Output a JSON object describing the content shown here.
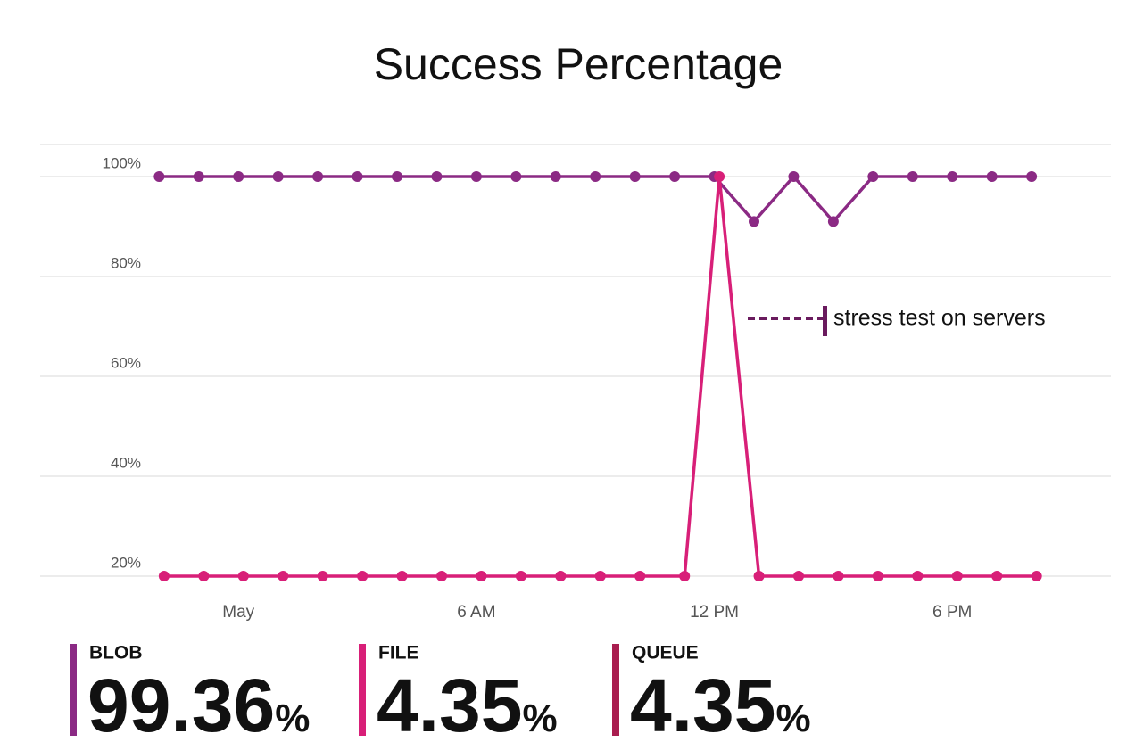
{
  "chart_data": {
    "type": "line",
    "title": "Success Percentage",
    "xlim": [
      -5,
      22
    ],
    "xticks": [
      {
        "value": 0,
        "label": "May"
      },
      {
        "value": 6,
        "label": "6 AM"
      },
      {
        "value": 12,
        "label": "12 PM"
      },
      {
        "value": 18,
        "label": "6 PM"
      }
    ],
    "ylim": [
      20,
      100
    ],
    "yticks": [
      {
        "value": 20,
        "label": "20%"
      },
      {
        "value": 40,
        "label": "40%"
      },
      {
        "value": 60,
        "label": "60%"
      },
      {
        "value": 80,
        "label": "80%"
      },
      {
        "value": 100,
        "label": "100%"
      }
    ],
    "grid": true,
    "series": [
      {
        "color": "#8b2a84",
        "x": [
          -2,
          -1,
          0,
          1,
          2,
          3,
          4,
          5,
          6,
          7,
          8,
          9,
          10,
          11,
          12,
          13,
          14,
          15,
          16,
          17,
          18,
          19,
          20
        ],
        "values": [
          100,
          100,
          100,
          100,
          100,
          100,
          100,
          100,
          100,
          100,
          100,
          100,
          100,
          100,
          100,
          91,
          100,
          91,
          100,
          100,
          100,
          100,
          100
        ]
      },
      {
        "color": "#d81f78",
        "x": [
          -1.875,
          -0.875,
          0.125,
          1.125,
          2.125,
          3.125,
          4.125,
          5.125,
          6.125,
          7.125,
          8.125,
          9.125,
          10.125,
          11.25,
          12.125,
          13.125,
          14.125,
          15.125,
          16.125,
          17.125,
          18.125,
          19.125,
          20.125
        ],
        "values": [
          20,
          20,
          20,
          20,
          20,
          20,
          20,
          20,
          20,
          20,
          20,
          20,
          20,
          20,
          100,
          20,
          20,
          20,
          20,
          20,
          20,
          20,
          20
        ]
      }
    ],
    "annotation": {
      "text": "stress test on servers",
      "color": "#6a1b5e"
    },
    "kpis": [
      {
        "label": "BLOB",
        "value": "99.36",
        "unit": "%",
        "color": "#8b2a84"
      },
      {
        "label": "FILE",
        "value": "4.35",
        "unit": "%",
        "color": "#d81f78"
      },
      {
        "label": "QUEUE",
        "value": "4.35",
        "unit": "%",
        "color": "#a91d4f"
      }
    ]
  }
}
